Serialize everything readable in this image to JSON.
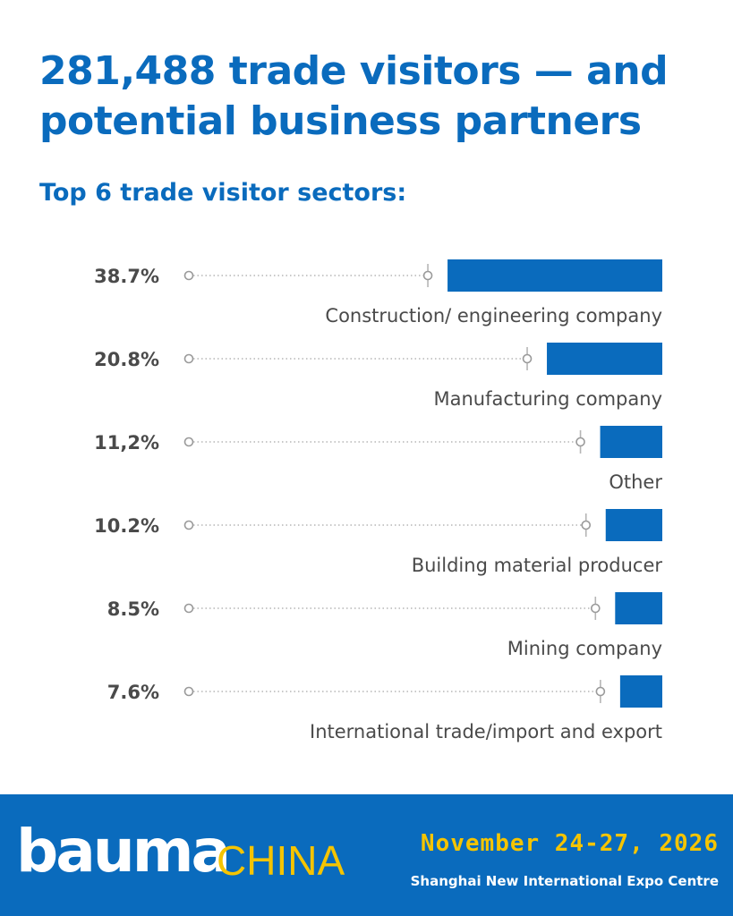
{
  "header": {
    "title": "281,488 trade visitors — and potential business partners",
    "subtitle": "Top 6 trade visitor sectors:"
  },
  "chart_data": {
    "type": "bar",
    "orientation": "horizontal",
    "categories": [
      "Construction/ engineering company",
      "Manufacturing company",
      "Other",
      "Building material producer",
      "Mining company",
      "International trade/import and export"
    ],
    "values": [
      38.7,
      20.8,
      11.2,
      10.2,
      8.5,
      7.6
    ],
    "value_labels": [
      "38.7%",
      "20.8%",
      "11,2%",
      "10.2%",
      "8.5%",
      "7.6%"
    ],
    "unit": "%",
    "bar_color": "#0a6bbd",
    "grid": false
  },
  "footer": {
    "logo_word": "bauma",
    "logo_suffix": "CHINA",
    "date": "November 24-27, 2026",
    "venue": "Shanghai New International Expo Centre",
    "background_color": "#0a6bbd",
    "accent_color": "#f5c400"
  }
}
